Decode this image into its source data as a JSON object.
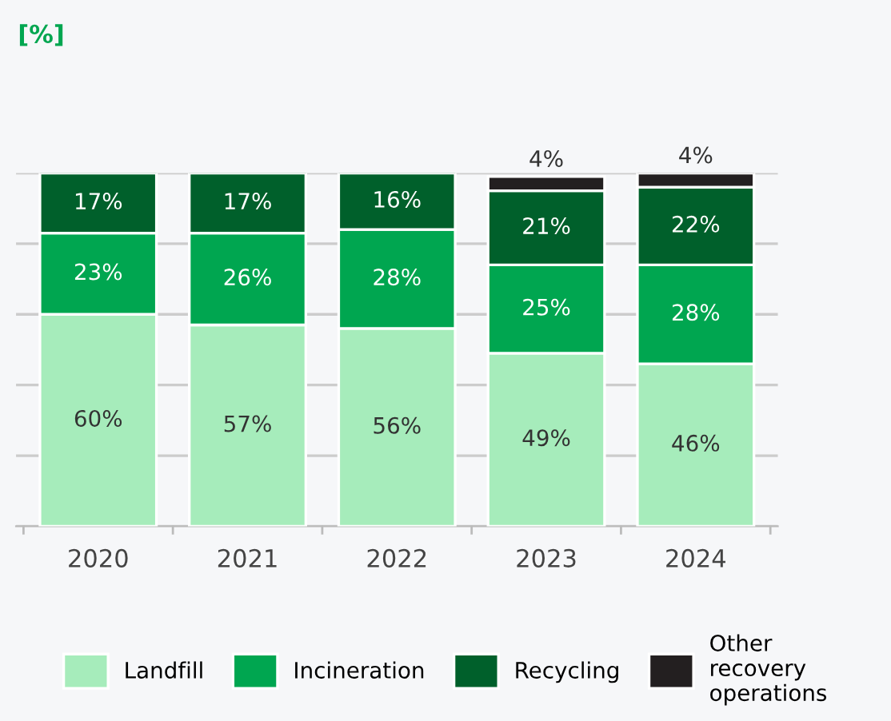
{
  "chart_data": {
    "type": "bar",
    "stacked": true,
    "annotations": [
      "[%]"
    ],
    "categories": [
      "2020",
      "2021",
      "2022",
      "2023",
      "2024"
    ],
    "series": [
      {
        "name": "Landfill",
        "color": "#a6ecbb",
        "values": [
          60,
          57,
          56,
          49,
          46
        ],
        "value_labels": [
          "60%",
          "57%",
          "56%",
          "49%",
          "46%"
        ]
      },
      {
        "name": "Incineration",
        "color": "#00a650",
        "values": [
          23,
          26,
          28,
          25,
          28
        ],
        "value_labels": [
          "23%",
          "26%",
          "28%",
          "25%",
          "28%"
        ]
      },
      {
        "name": "Recycling",
        "color": "#00602b",
        "values": [
          17,
          17,
          16,
          21,
          22
        ],
        "value_labels": [
          "17%",
          "17%",
          "16%",
          "21%",
          "22%"
        ]
      },
      {
        "name": "Other recovery operations",
        "color": "#231f20",
        "values": [
          null,
          null,
          null,
          4,
          4
        ],
        "value_labels": [
          null,
          null,
          null,
          "4%",
          "4%"
        ]
      }
    ],
    "ylim": [
      0,
      100
    ],
    "yticks": [
      {
        "value": 0,
        "label": null
      },
      {
        "value": 20,
        "label": null
      },
      {
        "value": 40,
        "label": null
      },
      {
        "value": 60,
        "label": null
      },
      {
        "value": 80,
        "label": null
      },
      {
        "value": 100,
        "label": null
      }
    ],
    "tick_labels": "x",
    "grid": "y",
    "legend": "bottom"
  }
}
